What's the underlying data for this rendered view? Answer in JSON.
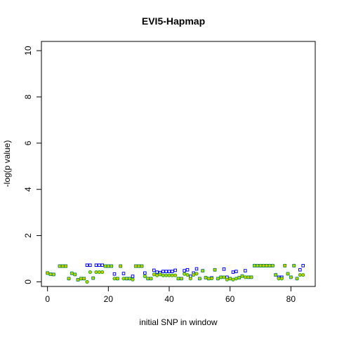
{
  "chart_data": {
    "type": "scatter",
    "title": "EVI5-Hapmap",
    "xlabel": "initial SNP in window",
    "ylabel": "-log(p value)",
    "xlim": [
      -2,
      88
    ],
    "ylim": [
      -0.2,
      10.4
    ],
    "xticks": [
      0,
      20,
      40,
      60,
      80
    ],
    "yticks": [
      0,
      2,
      4,
      6,
      8,
      10
    ],
    "grid": false,
    "legend": "none",
    "colors": {
      "series_a": "#0000ff",
      "series_b": "#22aa22",
      "series_c": "#cccc00"
    },
    "series": [
      {
        "marker": "open-square",
        "x": [
          0,
          1,
          2,
          4,
          5,
          6,
          7,
          8,
          9,
          10,
          11,
          12,
          13,
          14,
          15,
          16,
          17,
          18,
          19,
          20,
          21,
          22,
          23,
          24,
          25,
          26,
          27,
          28,
          29,
          30,
          31,
          32,
          33,
          34,
          35,
          36,
          37,
          38,
          39,
          40,
          41,
          42,
          43,
          44,
          45,
          46,
          47,
          48,
          49,
          50,
          51,
          52,
          53,
          54,
          55,
          56,
          57,
          58,
          59,
          60,
          61,
          62,
          63,
          64,
          65,
          66,
          67,
          68,
          69,
          70,
          71,
          72,
          73,
          74,
          75,
          76,
          77,
          78,
          79,
          80,
          81,
          82,
          83,
          84
        ],
        "values": [
          0.38,
          0.33,
          0.32,
          0.68,
          0.68,
          0.68,
          0.14,
          0.37,
          0.32,
          0.09,
          0.14,
          0.14,
          0.72,
          0.72,
          0.16,
          0.72,
          0.72,
          0.72,
          0.68,
          0.68,
          0.68,
          0.34,
          0.14,
          0.68,
          0.36,
          0.14,
          0.14,
          0.24,
          0.68,
          0.68,
          0.68,
          0.38,
          0.14,
          0.14,
          0.5,
          0.42,
          0.4,
          0.45,
          0.45,
          0.45,
          0.45,
          0.5,
          0.14,
          0.14,
          0.48,
          0.52,
          0.24,
          0.38,
          0.56,
          0.14,
          0.48,
          0.18,
          0.14,
          0.17,
          0.52,
          0.14,
          0.2,
          0.55,
          0.2,
          0.14,
          0.42,
          0.45,
          0.18,
          0.25,
          0.48,
          0.2,
          0.2,
          0.7,
          0.7,
          0.7,
          0.7,
          0.7,
          0.7,
          0.7,
          0.3,
          0.2,
          0.2,
          0.7,
          0.35,
          0.2,
          0.7,
          0.14,
          0.52,
          0.7
        ]
      },
      {
        "marker": "open-circle",
        "x": [
          0,
          1,
          2,
          4,
          5,
          6,
          7,
          8,
          9,
          10,
          11,
          12,
          13,
          14,
          15,
          16,
          17,
          18,
          19,
          20,
          21,
          22,
          23,
          24,
          25,
          26,
          27,
          28,
          29,
          30,
          31,
          32,
          33,
          34,
          35,
          36,
          37,
          38,
          39,
          40,
          41,
          42,
          43,
          44,
          45,
          46,
          47,
          48,
          49,
          50,
          51,
          52,
          53,
          54,
          55,
          56,
          57,
          58,
          59,
          60,
          61,
          62,
          63,
          64,
          65,
          66,
          67,
          68,
          69,
          70,
          71,
          72,
          73,
          74,
          75,
          76,
          77,
          78,
          79,
          80,
          81,
          82,
          83,
          84
        ],
        "values": [
          0.38,
          0.33,
          0.32,
          0.68,
          0.68,
          0.68,
          0.14,
          0.37,
          0.32,
          0.09,
          0.14,
          0.14,
          0.0,
          0.42,
          0.16,
          0.42,
          0.42,
          0.42,
          0.68,
          0.68,
          0.68,
          0.14,
          0.14,
          0.68,
          0.14,
          0.14,
          0.14,
          0.1,
          0.68,
          0.68,
          0.68,
          0.24,
          0.14,
          0.14,
          0.32,
          0.28,
          0.32,
          0.28,
          0.28,
          0.28,
          0.28,
          0.28,
          0.14,
          0.14,
          0.34,
          0.3,
          0.14,
          0.3,
          0.35,
          0.14,
          0.48,
          0.18,
          0.14,
          0.15,
          0.52,
          0.14,
          0.2,
          0.2,
          0.1,
          0.14,
          0.1,
          0.14,
          0.18,
          0.25,
          0.2,
          0.2,
          0.2,
          0.7,
          0.7,
          0.7,
          0.7,
          0.7,
          0.7,
          0.7,
          0.3,
          0.14,
          0.14,
          0.7,
          0.35,
          0.2,
          0.7,
          0.14,
          0.3,
          0.3
        ]
      }
    ]
  }
}
